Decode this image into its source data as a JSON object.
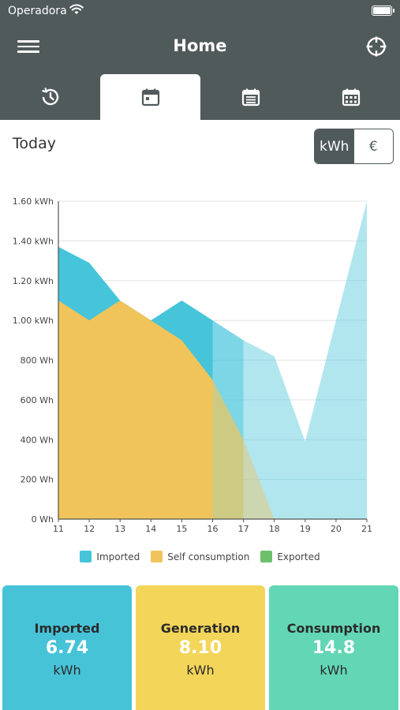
{
  "status_bar": {
    "carrier": "Operadora"
  },
  "header": {
    "title": "Home"
  },
  "tabs": [
    {
      "icon": "clock-icon",
      "active": false
    },
    {
      "icon": "calendar-day-icon",
      "active": true
    },
    {
      "icon": "calendar-list-icon",
      "active": false
    },
    {
      "icon": "calendar-grid-icon",
      "active": false
    }
  ],
  "period_label": "Today",
  "unit_toggle": {
    "kwh": "kWh",
    "euro": "€",
    "selected": "kWh"
  },
  "colors": {
    "imported": "#45c4da",
    "self_consumption": "#f0c45a",
    "exported": "#6dc06a",
    "card_imported": "#47c3d8",
    "card_generation": "#f3d55a",
    "card_consumption": "#63d6b5"
  },
  "chart_data": {
    "type": "area",
    "x": [
      11,
      12,
      13,
      14,
      15,
      16,
      17,
      18,
      19,
      20,
      21
    ],
    "x_tick_labels": [
      "11",
      "12",
      "13",
      "14",
      "15",
      "16",
      "17",
      "18",
      "19",
      "20",
      "21"
    ],
    "y_tick_labels": [
      "0 Wh",
      "200 Wh",
      "400 Wh",
      "600 Wh",
      "800 Wh",
      "1.00 kWh",
      "1.20 kWh",
      "1.40 kWh",
      "1.60 kWh"
    ],
    "ylim": [
      0,
      1.6
    ],
    "series": [
      {
        "name": "Imported",
        "values": [
          1.37,
          1.29,
          1.1,
          1.0,
          1.1,
          1.0,
          0.9,
          0.82,
          0.39,
          1.0,
          1.6
        ]
      },
      {
        "name": "Self consumption",
        "values": [
          1.1,
          1.0,
          1.1,
          1.0,
          0.9,
          0.7,
          0.4,
          0.0,
          0.0,
          0.0,
          0.0
        ]
      },
      {
        "name": "Exported",
        "values": [
          0,
          0,
          0,
          0,
          0,
          0,
          0,
          0,
          0,
          0,
          0
        ]
      }
    ],
    "highlight": {
      "solid_until": 16,
      "semi_until": 17
    },
    "grid": true,
    "legend_position": "bottom"
  },
  "summary": [
    {
      "label": "Imported",
      "value": "6.74",
      "unit": "kWh"
    },
    {
      "label": "Generation",
      "value": "8.10",
      "unit": "kWh"
    },
    {
      "label": "Consumption",
      "value": "14.8",
      "unit": "kWh"
    }
  ]
}
